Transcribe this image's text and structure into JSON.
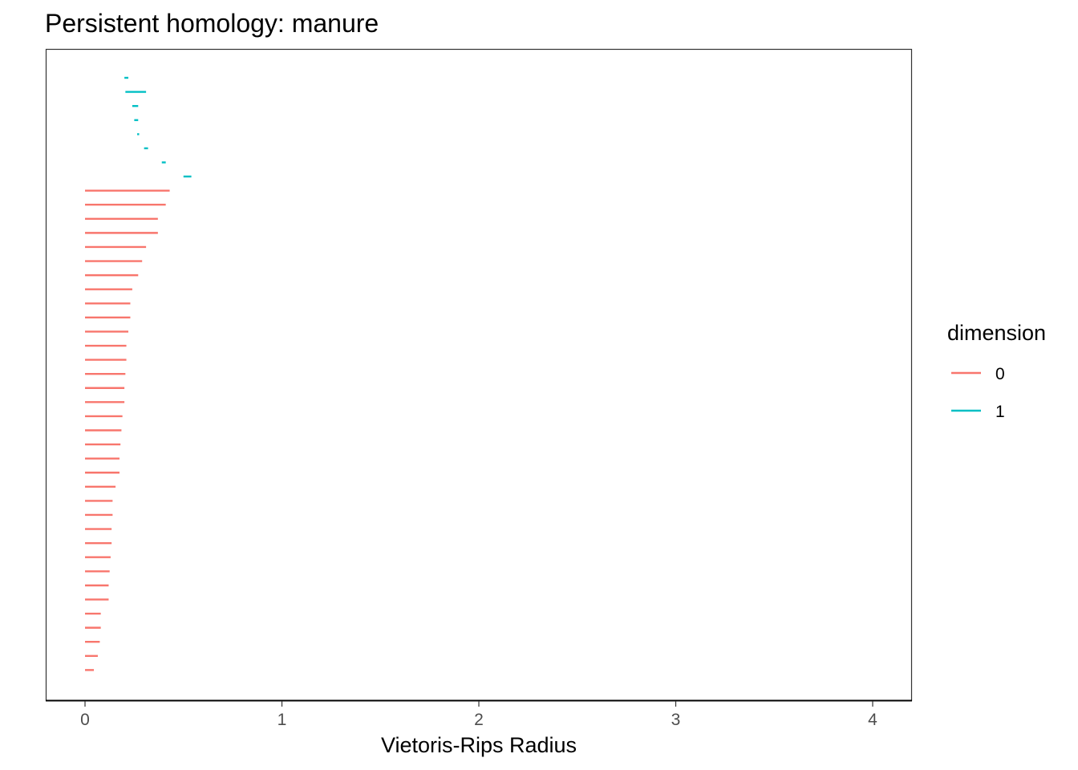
{
  "chart_data": {
    "type": "barcode",
    "title": "Persistent homology: manure",
    "xlabel": "Vietoris-Rips Radius",
    "ylabel": "",
    "xlim": [
      -0.2,
      4.2
    ],
    "xticks": [
      "0",
      "1",
      "2",
      "3",
      "4"
    ],
    "grid": false,
    "legend_title": "dimension",
    "legend_position": "right",
    "colors": {
      "0": "#F8766D",
      "1": "#00BFC4"
    },
    "series": [
      {
        "name": "0",
        "dimension": 0,
        "bars": [
          [
            0,
            0.43
          ],
          [
            0,
            0.41
          ],
          [
            0,
            0.37
          ],
          [
            0,
            0.37
          ],
          [
            0,
            0.31
          ],
          [
            0,
            0.29
          ],
          [
            0,
            0.27
          ],
          [
            0,
            0.24
          ],
          [
            0,
            0.23
          ],
          [
            0,
            0.23
          ],
          [
            0,
            0.22
          ],
          [
            0,
            0.21
          ],
          [
            0,
            0.21
          ],
          [
            0,
            0.205
          ],
          [
            0,
            0.2
          ],
          [
            0,
            0.2
          ],
          [
            0,
            0.19
          ],
          [
            0,
            0.185
          ],
          [
            0,
            0.18
          ],
          [
            0,
            0.175
          ],
          [
            0,
            0.175
          ],
          [
            0,
            0.155
          ],
          [
            0,
            0.14
          ],
          [
            0,
            0.14
          ],
          [
            0,
            0.135
          ],
          [
            0,
            0.135
          ],
          [
            0,
            0.13
          ],
          [
            0,
            0.125
          ],
          [
            0,
            0.12
          ],
          [
            0,
            0.12
          ],
          [
            0,
            0.08
          ],
          [
            0,
            0.08
          ],
          [
            0,
            0.075
          ],
          [
            0,
            0.065
          ],
          [
            0,
            0.045
          ]
        ]
      },
      {
        "name": "1",
        "dimension": 1,
        "bars": [
          [
            0.2,
            0.22
          ],
          [
            0.205,
            0.31
          ],
          [
            0.24,
            0.27
          ],
          [
            0.25,
            0.27
          ],
          [
            0.265,
            0.275
          ],
          [
            0.3,
            0.32
          ],
          [
            0.39,
            0.41
          ],
          [
            0.5,
            0.54
          ]
        ]
      }
    ]
  }
}
